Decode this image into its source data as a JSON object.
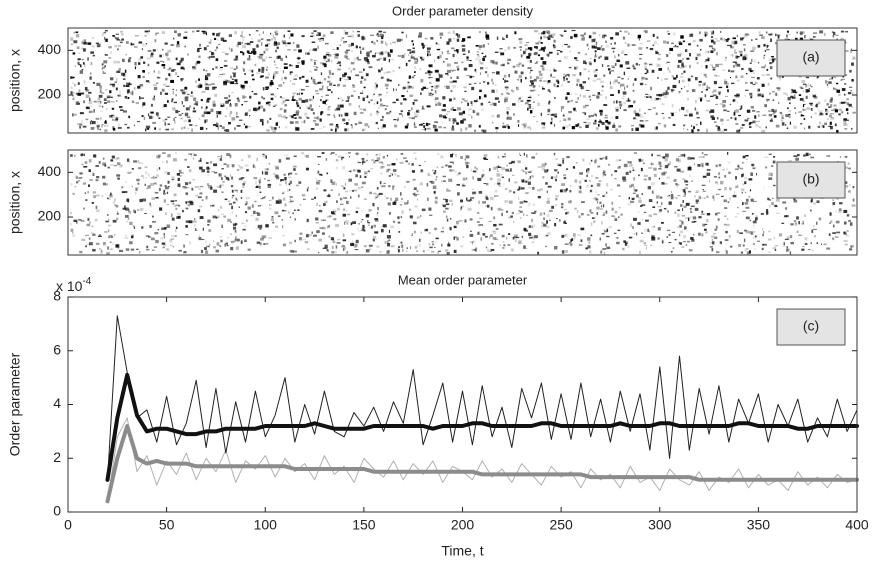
{
  "chart_data": [
    {
      "type": "heatmap",
      "title": "Order parameter density",
      "ylabel": "position, x",
      "panel_label": "(a)",
      "ylim": [
        30,
        500
      ],
      "yticks": [
        200,
        400
      ]
    },
    {
      "type": "heatmap",
      "ylabel": "position, x",
      "panel_label": "(b)",
      "ylim": [
        30,
        500
      ],
      "yticks": [
        200,
        400
      ]
    },
    {
      "type": "line",
      "title": "Mean order parameter",
      "xlabel": "Time, t",
      "ylabel": "Order parameter",
      "panel_label": "(c)",
      "y_multiplier": "x 10",
      "y_multiplier_exp": "-4",
      "xlim": [
        0,
        400
      ],
      "xticks": [
        0,
        50,
        100,
        150,
        200,
        250,
        300,
        350,
        400
      ],
      "ylim": [
        0,
        8
      ],
      "yticks": [
        0,
        2,
        4,
        6,
        8
      ],
      "x": [
        20,
        25,
        30,
        35,
        40,
        45,
        50,
        55,
        60,
        65,
        70,
        75,
        80,
        85,
        90,
        95,
        100,
        105,
        110,
        115,
        120,
        125,
        130,
        135,
        140,
        145,
        150,
        155,
        160,
        165,
        170,
        175,
        180,
        185,
        190,
        195,
        200,
        205,
        210,
        215,
        220,
        225,
        230,
        235,
        240,
        245,
        250,
        255,
        260,
        265,
        270,
        275,
        280,
        285,
        290,
        295,
        300,
        305,
        310,
        315,
        320,
        325,
        330,
        335,
        340,
        345,
        350,
        355,
        360,
        365,
        370,
        375,
        380,
        385,
        390,
        395,
        400
      ],
      "series": [
        {
          "color": "#b0b0b0",
          "width": 1,
          "values": [
            0.4,
            2.8,
            3.5,
            1.5,
            2.1,
            1.0,
            1.9,
            1.4,
            2.2,
            1.2,
            2.0,
            1.5,
            2.3,
            1.1,
            1.9,
            1.6,
            2.1,
            1.3,
            2.0,
            1.5,
            1.8,
            1.2,
            2.1,
            1.4,
            1.7,
            1.1,
            2.0,
            1.6,
            1.3,
            1.9,
            1.2,
            1.8,
            1.4,
            1.9,
            1.1,
            1.7,
            1.5,
            1.2,
            1.9,
            1.3,
            1.6,
            1.1,
            1.8,
            1.4,
            1.0,
            1.7,
            1.3,
            1.5,
            0.9,
            1.6,
            1.2,
            1.4,
            0.9,
            1.7,
            1.1,
            1.3,
            0.8,
            1.6,
            1.2,
            1.0,
            1.5,
            0.8,
            1.3,
            1.1,
            1.6,
            0.9,
            1.4,
            1.0,
            1.2,
            0.8,
            1.5,
            1.0,
            1.3,
            0.9,
            1.4,
            1.1,
            1.2
          ]
        },
        {
          "color": "#222222",
          "width": 1,
          "values": [
            1.2,
            7.3,
            5.2,
            3.5,
            3.8,
            2.6,
            4.3,
            2.5,
            3.3,
            4.9,
            2.4,
            4.6,
            2.2,
            4.1,
            2.6,
            4.5,
            2.8,
            3.6,
            5.0,
            2.6,
            4.0,
            2.9,
            4.5,
            3.0,
            2.8,
            3.7,
            3.2,
            3.9,
            3.0,
            4.1,
            3.3,
            5.3,
            2.5,
            3.6,
            4.8,
            2.6,
            4.5,
            2.5,
            4.7,
            2.8,
            3.9,
            2.4,
            4.6,
            3.5,
            4.8,
            2.7,
            4.4,
            2.7,
            4.8,
            2.8,
            4.2,
            2.6,
            4.5,
            3.0,
            4.4,
            2.3,
            5.4,
            2.0,
            5.8,
            2.3,
            4.6,
            2.9,
            4.7,
            2.6,
            4.2,
            3.3,
            4.4,
            2.6,
            4.0,
            3.2,
            4.2,
            2.6,
            3.5,
            2.8,
            4.2,
            3.0,
            3.8
          ]
        },
        {
          "color": "#8c8c8c",
          "width": 4,
          "values": [
            0.4,
            2.0,
            3.2,
            2.0,
            1.8,
            1.9,
            1.8,
            1.8,
            1.8,
            1.7,
            1.7,
            1.7,
            1.7,
            1.7,
            1.7,
            1.7,
            1.7,
            1.7,
            1.7,
            1.6,
            1.6,
            1.6,
            1.6,
            1.6,
            1.6,
            1.6,
            1.6,
            1.5,
            1.5,
            1.5,
            1.5,
            1.5,
            1.5,
            1.5,
            1.5,
            1.5,
            1.5,
            1.5,
            1.4,
            1.4,
            1.4,
            1.4,
            1.4,
            1.4,
            1.4,
            1.4,
            1.4,
            1.4,
            1.4,
            1.3,
            1.3,
            1.3,
            1.3,
            1.3,
            1.3,
            1.3,
            1.3,
            1.3,
            1.3,
            1.3,
            1.2,
            1.2,
            1.2,
            1.2,
            1.2,
            1.2,
            1.2,
            1.2,
            1.2,
            1.2,
            1.2,
            1.2,
            1.2,
            1.2,
            1.2,
            1.2,
            1.2
          ]
        },
        {
          "color": "#111111",
          "width": 4,
          "values": [
            1.2,
            3.5,
            5.1,
            3.6,
            3.0,
            3.1,
            3.1,
            3.0,
            2.9,
            2.9,
            3.0,
            3.0,
            3.1,
            3.1,
            3.1,
            3.1,
            3.2,
            3.2,
            3.2,
            3.2,
            3.2,
            3.3,
            3.2,
            3.1,
            3.1,
            3.1,
            3.1,
            3.2,
            3.2,
            3.2,
            3.2,
            3.2,
            3.2,
            3.1,
            3.2,
            3.2,
            3.2,
            3.3,
            3.3,
            3.2,
            3.2,
            3.2,
            3.2,
            3.2,
            3.3,
            3.3,
            3.2,
            3.2,
            3.2,
            3.2,
            3.2,
            3.2,
            3.3,
            3.2,
            3.2,
            3.2,
            3.3,
            3.3,
            3.2,
            3.2,
            3.2,
            3.2,
            3.2,
            3.2,
            3.3,
            3.3,
            3.2,
            3.2,
            3.2,
            3.2,
            3.1,
            3.1,
            3.2,
            3.2,
            3.2,
            3.2,
            3.2
          ]
        }
      ]
    }
  ]
}
